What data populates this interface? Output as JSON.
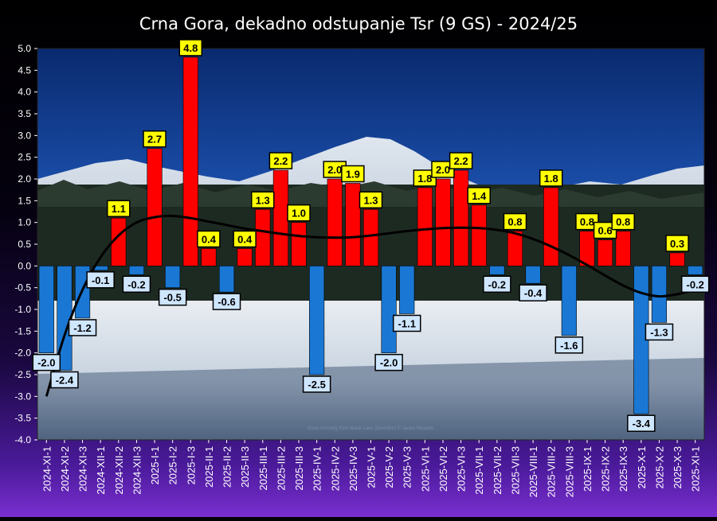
{
  "chart_data": {
    "type": "bar",
    "title": "Crna Gora, dekadno odstupanje Tsr (9 GS) - 2024/25",
    "ylim": [
      -4.0,
      5.0
    ],
    "yticks": [
      "5.0",
      "4.5",
      "4.0",
      "3.5",
      "3.0",
      "2.5",
      "2.0",
      "1.5",
      "1.0",
      "0.5",
      "0.0",
      "-0.5",
      "-1.0",
      "-1.5",
      "-2.0",
      "-2.5",
      "-3.0",
      "-3.5",
      "-4.0"
    ],
    "categories": [
      "2024-XI-1",
      "2024-XI-2",
      "2024-XI-3",
      "2024-XII-1",
      "2024-XII-2",
      "2024-XII-3",
      "2025-I-1",
      "2025-I-2",
      "2025-I-3",
      "2025-II-1",
      "2025-II-2",
      "2025-II-3",
      "2025-III-1",
      "2025-III-2",
      "2025-III-3",
      "2025-IV-1",
      "2025-IV-2",
      "2025-IV-3",
      "2025-V-1",
      "2025-V-2",
      "2025-V-3",
      "2025-VI-1",
      "2025-VI-2",
      "2025-VI-3",
      "2025-VII-1",
      "2025-VII-2",
      "2025-VII-3",
      "2025-VIII-1",
      "2025-VIII-2",
      "2025-VIII-3",
      "2025-IX-1",
      "2025-IX-2",
      "2025-IX-3",
      "2025-X-1",
      "2025-X-2",
      "2025-X-3",
      "2025-XI-1"
    ],
    "values": [
      -2.0,
      -2.4,
      -1.2,
      -0.1,
      1.1,
      -0.2,
      2.7,
      -0.5,
      4.8,
      0.4,
      -0.6,
      0.4,
      1.3,
      2.2,
      1.0,
      -2.5,
      2.0,
      1.9,
      1.3,
      -2.0,
      -1.1,
      1.8,
      2.0,
      2.2,
      1.4,
      -0.2,
      0.8,
      -0.4,
      1.8,
      -1.6,
      0.8,
      0.6,
      0.8,
      -3.4,
      -1.3,
      0.3,
      -0.2
    ],
    "labels": [
      "-2.0",
      "-2.4",
      "-1.2",
      "-0.1",
      "1.1",
      "-0.2",
      "2.7",
      "-0.5",
      "4.8",
      "0.4",
      "-0.6",
      "0.4",
      "1.3",
      "2.2",
      "1.0",
      "-2.5",
      "2.0",
      "1.9",
      "1.3",
      "-2.0",
      "-1.1",
      "1.8",
      "2.0",
      "2.2",
      "1.4",
      "-0.2",
      "0.8",
      "-0.4",
      "1.8",
      "-1.6",
      "0.8",
      "0.6",
      "0.8",
      "-3.4",
      "-1.3",
      "0.3",
      "-0.2"
    ],
    "trend": [
      -3.0,
      -1.6,
      -0.55,
      0.2,
      0.7,
      1.0,
      1.12,
      1.15,
      1.1,
      1.02,
      0.94,
      0.86,
      0.8,
      0.74,
      0.69,
      0.66,
      0.65,
      0.66,
      0.7,
      0.75,
      0.8,
      0.84,
      0.87,
      0.88,
      0.87,
      0.83,
      0.75,
      0.62,
      0.45,
      0.25,
      0.02,
      -0.22,
      -0.45,
      -0.62,
      -0.7,
      -0.65,
      -0.55
    ],
    "watermark": "Good morning from Black Lake (Durmitor) © Janko Skuaets",
    "colors": {
      "positive": "#ff0000",
      "negative": "#1a78d4",
      "pos_label_bg": "#ffff00",
      "neg_label_bg": "#cfe6ff",
      "trend": "#000000"
    },
    "grid": false
  }
}
